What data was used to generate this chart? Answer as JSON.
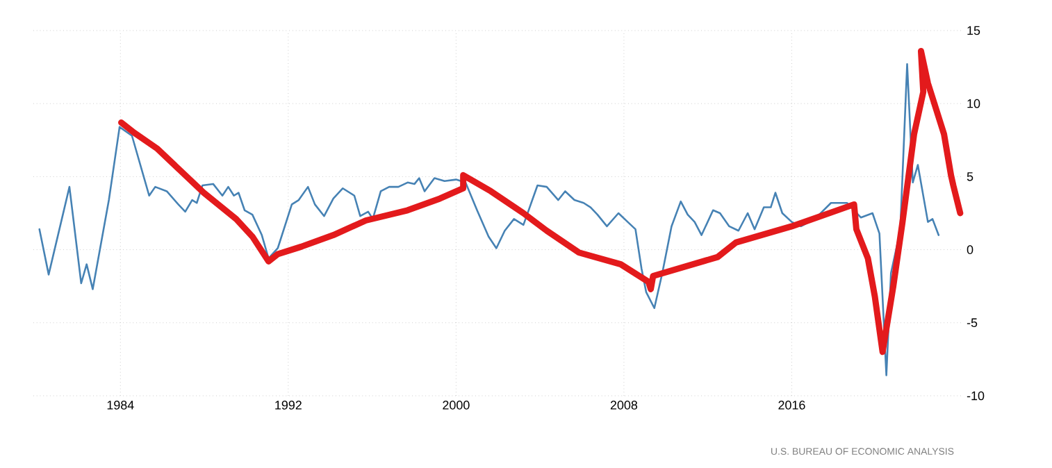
{
  "chart_data": {
    "type": "line",
    "xlim": [
      1979.85,
      2024.1
    ],
    "ylim": [
      -10,
      15
    ],
    "xticks": [
      1984,
      1992,
      2000,
      2008,
      2016
    ],
    "yticks": [
      -10,
      -5,
      0,
      5,
      10,
      15
    ],
    "grid": true,
    "marker": "none",
    "line_style": "solid",
    "annotations": [
      "U.S. BUREAU OF ECONOMIC ANALYSIS"
    ],
    "series": [
      {
        "color": "#4682b4",
        "x": [
          1980.14,
          1980.58,
          1981.57,
          1982.13,
          1982.39,
          1982.68,
          1983.45,
          1983.96,
          1984.55,
          1985.37,
          1985.66,
          1986.21,
          1986.76,
          1987.09,
          1987.42,
          1987.64,
          1987.91,
          1988.42,
          1988.86,
          1989.14,
          1989.41,
          1989.63,
          1989.92,
          1990.29,
          1990.74,
          1991.06,
          1991.5,
          1992.17,
          1992.5,
          1992.94,
          1993.27,
          1993.71,
          1994.15,
          1994.6,
          1995.15,
          1995.43,
          1995.81,
          1996.03,
          1996.41,
          1996.81,
          1997.25,
          1997.69,
          1998.02,
          1998.24,
          1998.5,
          1998.97,
          1999.45,
          2000.0,
          2000.45,
          2001.0,
          2001.55,
          2001.92,
          2002.32,
          2002.76,
          2003.21,
          2003.88,
          2004.32,
          2004.87,
          2005.2,
          2005.64,
          2006.08,
          2006.41,
          2006.74,
          2007.19,
          2007.74,
          2008.18,
          2008.55,
          2008.84,
          2009.06,
          2009.45,
          2009.83,
          2010.27,
          2010.71,
          2011.04,
          2011.37,
          2011.7,
          2012.25,
          2012.58,
          2013.02,
          2013.46,
          2013.9,
          2014.23,
          2014.67,
          2015.0,
          2015.22,
          2015.55,
          2016.0,
          2016.44,
          2017.1,
          2017.87,
          2018.64,
          2019.3,
          2019.85,
          2020.18,
          2020.51,
          2020.73,
          2021.17,
          2021.5,
          2021.77,
          2022.01,
          2022.49,
          2022.71,
          2023.0
        ],
        "values": [
          1.4,
          -1.7,
          4.3,
          -2.3,
          -1.0,
          -2.7,
          3.4,
          8.4,
          7.8,
          3.7,
          4.3,
          4.0,
          3.1,
          2.6,
          3.4,
          3.2,
          4.4,
          4.5,
          3.7,
          4.3,
          3.7,
          3.9,
          2.7,
          2.4,
          1.0,
          -0.6,
          0.1,
          3.1,
          3.4,
          4.3,
          3.1,
          2.3,
          3.5,
          4.2,
          3.7,
          2.3,
          2.6,
          2.1,
          4.0,
          4.3,
          4.3,
          4.6,
          4.5,
          4.9,
          4.0,
          4.9,
          4.7,
          4.8,
          4.6,
          2.7,
          0.9,
          0.1,
          1.3,
          2.1,
          1.7,
          4.4,
          4.3,
          3.4,
          4.0,
          3.4,
          3.2,
          2.9,
          2.4,
          1.6,
          2.5,
          1.9,
          1.4,
          -1.3,
          -2.9,
          -4.0,
          -1.6,
          1.6,
          3.3,
          2.4,
          1.9,
          1.0,
          2.7,
          2.5,
          1.6,
          1.3,
          2.5,
          1.4,
          2.9,
          2.9,
          3.9,
          2.5,
          1.9,
          1.6,
          2.1,
          3.2,
          3.2,
          2.2,
          2.5,
          1.1,
          -8.6,
          -1.6,
          1.3,
          12.7,
          4.6,
          5.8,
          1.9,
          2.1,
          1.0
        ]
      },
      {
        "color": "#e31a1c",
        "x": [
          1984.04,
          1984.66,
          1985.77,
          1986.65,
          1987.97,
          1989.52,
          1990.29,
          1991.06,
          1991.5,
          1992.61,
          1994.15,
          1995.7,
          1997.69,
          1999.23,
          2000.34,
          2000.34,
          2001.66,
          2003.21,
          2004.32,
          2005.86,
          2007.85,
          2009.17,
          2009.28,
          2009.39,
          2012.47,
          2013.35,
          2016.0,
          2018.97,
          2019.08,
          2019.63,
          2019.96,
          2020.33,
          2020.84,
          2021.28,
          2021.83,
          2022.27,
          2022.16,
          2022.49,
          2023.26,
          2023.59,
          2023.7,
          2024.03
        ],
        "values": [
          8.7,
          8.0,
          6.9,
          5.7,
          3.9,
          2.1,
          0.9,
          -0.8,
          -0.3,
          0.2,
          1.0,
          2.0,
          2.7,
          3.5,
          4.2,
          5.1,
          4.0,
          2.5,
          1.3,
          -0.2,
          -1.0,
          -2.2,
          -2.7,
          -1.8,
          -0.5,
          0.5,
          1.6,
          3.1,
          1.4,
          -0.6,
          -3.2,
          -7.0,
          -2.5,
          1.9,
          7.9,
          10.8,
          13.6,
          11.4,
          7.9,
          5.1,
          4.4,
          2.5
        ]
      }
    ]
  }
}
